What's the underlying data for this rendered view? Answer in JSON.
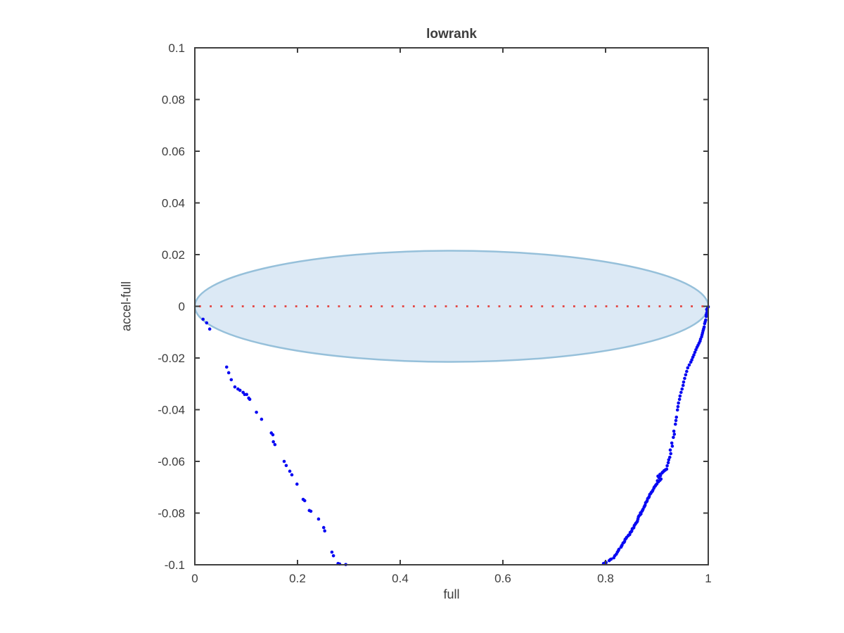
{
  "figure": {
    "background": "#ffffff"
  },
  "chart_data": {
    "type": "scatter",
    "title": "lowrank",
    "xlabel": "full",
    "ylabel": "accel-full",
    "xlim": [
      0,
      1
    ],
    "ylim": [
      -0.1,
      0.1
    ],
    "grid": false,
    "box": true,
    "tick_direction": "in",
    "xticks": [
      0,
      0.2,
      0.4,
      0.6,
      0.8,
      1
    ],
    "xtick_labels": [
      "0",
      "0.2",
      "0.4",
      "0.6",
      "0.8",
      "1"
    ],
    "yticks": [
      0.1,
      0.08,
      0.06,
      0.04,
      0.02,
      0,
      -0.02,
      -0.04,
      -0.06,
      -0.08,
      -0.1
    ],
    "ytick_labels": [
      "0.1",
      "0.08",
      "0.06",
      "0.04",
      "0.02",
      "0",
      "-0.02",
      "-0.04",
      "-0.06",
      "-0.08",
      "-0.1"
    ],
    "axis_color": "#3f3f3f",
    "text_color": "#3d3d3d",
    "ellipse": {
      "cx": 0.5,
      "cy": 0,
      "rx": 0.5,
      "ry": 0.0215,
      "fill": "#dce9f5",
      "stroke": "#96c0da",
      "stroke_width": 2.5
    },
    "zero_line": {
      "y": 0,
      "x0": 0,
      "x1": 1,
      "style": "dotted",
      "color": "#e3413e",
      "dot_size": 2.8,
      "dot_pitch": 15.2
    },
    "series": [
      {
        "name": "left-branch",
        "marker": "dot",
        "color": "#0909f2",
        "marker_radius": 2.3,
        "points": [
          [
            0.016,
            -0.005
          ],
          [
            0.023,
            -0.0064
          ],
          [
            0.029,
            -0.0088
          ],
          [
            0.062,
            -0.0235
          ],
          [
            0.066,
            -0.0257
          ],
          [
            0.071,
            -0.0284
          ],
          [
            0.078,
            -0.0312
          ],
          [
            0.084,
            -0.032
          ],
          [
            0.088,
            -0.0325
          ],
          [
            0.094,
            -0.0333
          ],
          [
            0.097,
            -0.0341
          ],
          [
            0.101,
            -0.0341
          ],
          [
            0.105,
            -0.0355
          ],
          [
            0.107,
            -0.036
          ],
          [
            0.12,
            -0.041
          ],
          [
            0.13,
            -0.0437
          ],
          [
            0.149,
            -0.049
          ],
          [
            0.152,
            -0.0497
          ],
          [
            0.153,
            -0.0524
          ],
          [
            0.156,
            -0.0535
          ],
          [
            0.174,
            -0.06
          ],
          [
            0.178,
            -0.0616
          ],
          [
            0.185,
            -0.0638
          ],
          [
            0.189,
            -0.0652
          ],
          [
            0.199,
            -0.0688
          ],
          [
            0.211,
            -0.0747
          ],
          [
            0.214,
            -0.0752
          ],
          [
            0.223,
            -0.079
          ],
          [
            0.226,
            -0.0793
          ],
          [
            0.241,
            -0.0823
          ],
          [
            0.251,
            -0.0856
          ],
          [
            0.253,
            -0.0869
          ],
          [
            0.267,
            -0.0951
          ],
          [
            0.27,
            -0.0965
          ],
          [
            0.279,
            -0.0995
          ],
          [
            0.282,
            -0.0997
          ],
          [
            0.294,
            -0.0999
          ]
        ]
      },
      {
        "name": "right-branch",
        "marker": "dot",
        "color": "#0909f2",
        "marker_radius": 2.3,
        "points": [
          [
            0.796,
            -0.0995
          ],
          [
            0.801,
            -0.0992
          ],
          [
            0.807,
            -0.0984
          ],
          [
            0.811,
            -0.0978
          ],
          [
            0.816,
            -0.0973
          ],
          [
            0.821,
            -0.0959
          ],
          [
            0.823,
            -0.0951
          ],
          [
            0.826,
            -0.094
          ],
          [
            0.83,
            -0.0932
          ],
          [
            0.832,
            -0.0924
          ],
          [
            0.834,
            -0.0916
          ],
          [
            0.837,
            -0.091
          ],
          [
            0.838,
            -0.0902
          ],
          [
            0.841,
            -0.0894
          ],
          [
            0.844,
            -0.0888
          ],
          [
            0.847,
            -0.0883
          ],
          [
            0.848,
            -0.0875
          ],
          [
            0.851,
            -0.0869
          ],
          [
            0.852,
            -0.0861
          ],
          [
            0.855,
            -0.0856
          ],
          [
            0.856,
            -0.0848
          ],
          [
            0.859,
            -0.0839
          ],
          [
            0.862,
            -0.0831
          ],
          [
            0.863,
            -0.0823
          ],
          [
            0.864,
            -0.0815
          ],
          [
            0.867,
            -0.0807
          ],
          [
            0.868,
            -0.0799
          ],
          [
            0.871,
            -0.0793
          ],
          [
            0.873,
            -0.0785
          ],
          [
            0.875,
            -0.0777
          ],
          [
            0.877,
            -0.0769
          ],
          [
            0.878,
            -0.076
          ],
          [
            0.881,
            -0.0752
          ],
          [
            0.882,
            -0.0744
          ],
          [
            0.885,
            -0.0736
          ],
          [
            0.886,
            -0.0728
          ],
          [
            0.889,
            -0.072
          ],
          [
            0.892,
            -0.0712
          ],
          [
            0.894,
            -0.0704
          ],
          [
            0.897,
            -0.0695
          ],
          [
            0.9,
            -0.0687
          ],
          [
            0.903,
            -0.0679
          ],
          [
            0.906,
            -0.0673
          ],
          [
            0.908,
            -0.0668
          ],
          [
            0.904,
            -0.0663
          ],
          [
            0.902,
            -0.0657
          ],
          [
            0.906,
            -0.065
          ],
          [
            0.91,
            -0.0645
          ],
          [
            0.913,
            -0.0639
          ],
          [
            0.916,
            -0.0634
          ],
          [
            0.919,
            -0.063
          ],
          [
            0.922,
            -0.0605
          ],
          [
            0.925,
            -0.0584
          ],
          [
            0.926,
            -0.0556
          ],
          [
            0.929,
            -0.0529
          ],
          [
            0.932,
            -0.0507
          ],
          [
            0.933,
            -0.0483
          ],
          [
            0.936,
            -0.0456
          ],
          [
            0.938,
            -0.0429
          ],
          [
            0.94,
            -0.0401
          ],
          [
            0.942,
            -0.0374
          ],
          [
            0.945,
            -0.0347
          ],
          [
            0.949,
            -0.032
          ],
          [
            0.952,
            -0.0293
          ],
          [
            0.956,
            -0.0265
          ],
          [
            0.96,
            -0.0238
          ],
          [
            0.966,
            -0.0216
          ],
          [
            0.97,
            -0.0197
          ],
          [
            0.974,
            -0.0178
          ],
          [
            0.978,
            -0.0159
          ],
          [
            0.982,
            -0.0143
          ],
          [
            0.985,
            -0.0127
          ],
          [
            0.988,
            -0.011
          ],
          [
            0.99,
            -0.0094
          ],
          [
            0.992,
            -0.008
          ],
          [
            0.993,
            -0.0067
          ],
          [
            0.995,
            -0.0053
          ],
          [
            0.996,
            -0.0039
          ],
          [
            0.997,
            -0.0026
          ],
          [
            0.997,
            -0.0012
          ],
          [
            0.999,
            -0.0004
          ],
          [
            0.8,
            -0.099
          ],
          [
            0.809,
            -0.098
          ],
          [
            0.818,
            -0.0965
          ],
          [
            0.825,
            -0.0945
          ],
          [
            0.831,
            -0.0928
          ],
          [
            0.836,
            -0.0913
          ],
          [
            0.84,
            -0.0898
          ],
          [
            0.845,
            -0.0885
          ],
          [
            0.85,
            -0.0872
          ],
          [
            0.854,
            -0.0858
          ],
          [
            0.858,
            -0.0843
          ],
          [
            0.861,
            -0.0835
          ],
          [
            0.865,
            -0.0811
          ],
          [
            0.869,
            -0.0803
          ],
          [
            0.872,
            -0.0789
          ],
          [
            0.876,
            -0.0773
          ],
          [
            0.88,
            -0.0756
          ],
          [
            0.884,
            -0.074
          ],
          [
            0.888,
            -0.0724
          ],
          [
            0.891,
            -0.0716
          ],
          [
            0.895,
            -0.0699
          ],
          [
            0.898,
            -0.0691
          ],
          [
            0.901,
            -0.0675
          ],
          [
            0.907,
            -0.0655
          ],
          [
            0.911,
            -0.0642
          ],
          [
            0.914,
            -0.0636
          ],
          [
            0.917,
            -0.0632
          ],
          [
            0.92,
            -0.0617
          ],
          [
            0.923,
            -0.0594
          ],
          [
            0.927,
            -0.057
          ],
          [
            0.93,
            -0.0541
          ],
          [
            0.934,
            -0.0495
          ],
          [
            0.937,
            -0.0442
          ],
          [
            0.941,
            -0.0388
          ],
          [
            0.944,
            -0.036
          ],
          [
            0.947,
            -0.0333
          ],
          [
            0.951,
            -0.0306
          ],
          [
            0.954,
            -0.0279
          ],
          [
            0.958,
            -0.0252
          ],
          [
            0.963,
            -0.0227
          ],
          [
            0.968,
            -0.0207
          ],
          [
            0.972,
            -0.0188
          ],
          [
            0.976,
            -0.0168
          ],
          [
            0.98,
            -0.0151
          ],
          [
            0.984,
            -0.0135
          ],
          [
            0.987,
            -0.0118
          ],
          [
            0.989,
            -0.0102
          ],
          [
            0.991,
            -0.0087
          ],
          [
            0.994,
            -0.006
          ],
          [
            0.996,
            -0.0033
          ],
          [
            0.998,
            -0.0018
          ],
          [
            1.0,
            -0.0002
          ]
        ]
      }
    ]
  }
}
